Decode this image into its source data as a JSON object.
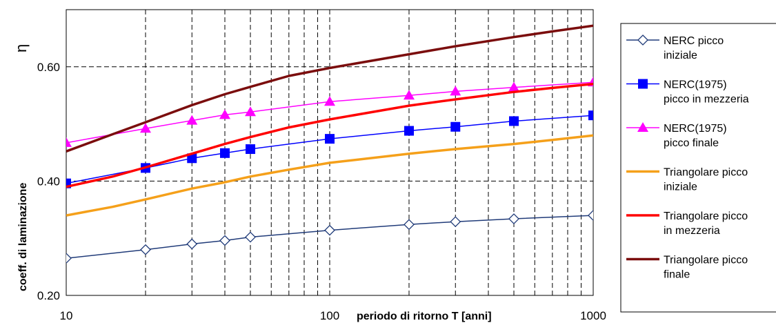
{
  "chart_data": {
    "type": "line",
    "xlabel": "periodo di ritorno T [anni]",
    "ylabel": "coeff. di laminazione",
    "ylabel_symbol": "η",
    "xscale": "log",
    "xlim": [
      10,
      1000
    ],
    "ylim": [
      0.2,
      0.7
    ],
    "x_tick_labels": [
      "10",
      "100",
      "1000"
    ],
    "y_tick_labels": [
      "0.20",
      "0.40",
      "0.60"
    ],
    "grid": true,
    "legend_position": "right",
    "series": [
      {
        "name": "NERC picco iniziale",
        "color": "#1f3a78",
        "marker": "diamond-open",
        "x": [
          10,
          20,
          30,
          40,
          50,
          100,
          200,
          300,
          500,
          1000
        ],
        "y": [
          0.265,
          0.28,
          0.29,
          0.296,
          0.302,
          0.314,
          0.324,
          0.329,
          0.334,
          0.34
        ]
      },
      {
        "name": "NERC(1975) picco in mezzeria",
        "color": "#0000ff",
        "marker": "square",
        "x": [
          10,
          20,
          30,
          40,
          50,
          100,
          200,
          300,
          500,
          1000
        ],
        "y": [
          0.396,
          0.423,
          0.44,
          0.449,
          0.456,
          0.474,
          0.488,
          0.495,
          0.505,
          0.515
        ]
      },
      {
        "name": "NERC(1975) picco finale",
        "color": "#ff00ff",
        "marker": "triangle",
        "x": [
          10,
          20,
          30,
          40,
          50,
          100,
          200,
          300,
          500,
          1000
        ],
        "y": [
          0.467,
          0.492,
          0.506,
          0.516,
          0.521,
          0.539,
          0.55,
          0.557,
          0.564,
          0.573
        ]
      },
      {
        "name": "Triangolare picco iniziale",
        "color": "#f5a01a",
        "marker": "none",
        "x": [
          10,
          15,
          20,
          30,
          40,
          50,
          70,
          100,
          200,
          300,
          500,
          700,
          1000
        ],
        "y": [
          0.34,
          0.355,
          0.368,
          0.387,
          0.398,
          0.408,
          0.42,
          0.432,
          0.448,
          0.456,
          0.465,
          0.472,
          0.48
        ]
      },
      {
        "name": "Triangolare picco in mezzeria",
        "color": "#ff0000",
        "marker": "none",
        "x": [
          10,
          15,
          20,
          30,
          40,
          50,
          70,
          100,
          200,
          300,
          500,
          700,
          1000
        ],
        "y": [
          0.39,
          0.408,
          0.424,
          0.448,
          0.465,
          0.477,
          0.494,
          0.508,
          0.532,
          0.543,
          0.556,
          0.563,
          0.57
        ]
      },
      {
        "name": "Triangolare picco finale",
        "color": "#7b0d0d",
        "marker": "none",
        "x": [
          10,
          15,
          20,
          30,
          40,
          50,
          70,
          100,
          200,
          300,
          500,
          700,
          1000
        ],
        "y": [
          0.452,
          0.482,
          0.503,
          0.533,
          0.552,
          0.565,
          0.584,
          0.598,
          0.622,
          0.636,
          0.652,
          0.662,
          0.672
        ]
      }
    ]
  },
  "legend": {
    "entries": [
      {
        "lines": [
          "NERC picco",
          "iniziale"
        ]
      },
      {
        "lines": [
          "NERC(1975)",
          "picco in mezzeria"
        ]
      },
      {
        "lines": [
          "NERC(1975)",
          "picco finale"
        ]
      },
      {
        "lines": [
          "Triangolare picco",
          "iniziale"
        ]
      },
      {
        "lines": [
          "Triangolare picco",
          "in mezzeria"
        ]
      },
      {
        "lines": [
          "Triangolare picco",
          "finale"
        ]
      }
    ]
  }
}
